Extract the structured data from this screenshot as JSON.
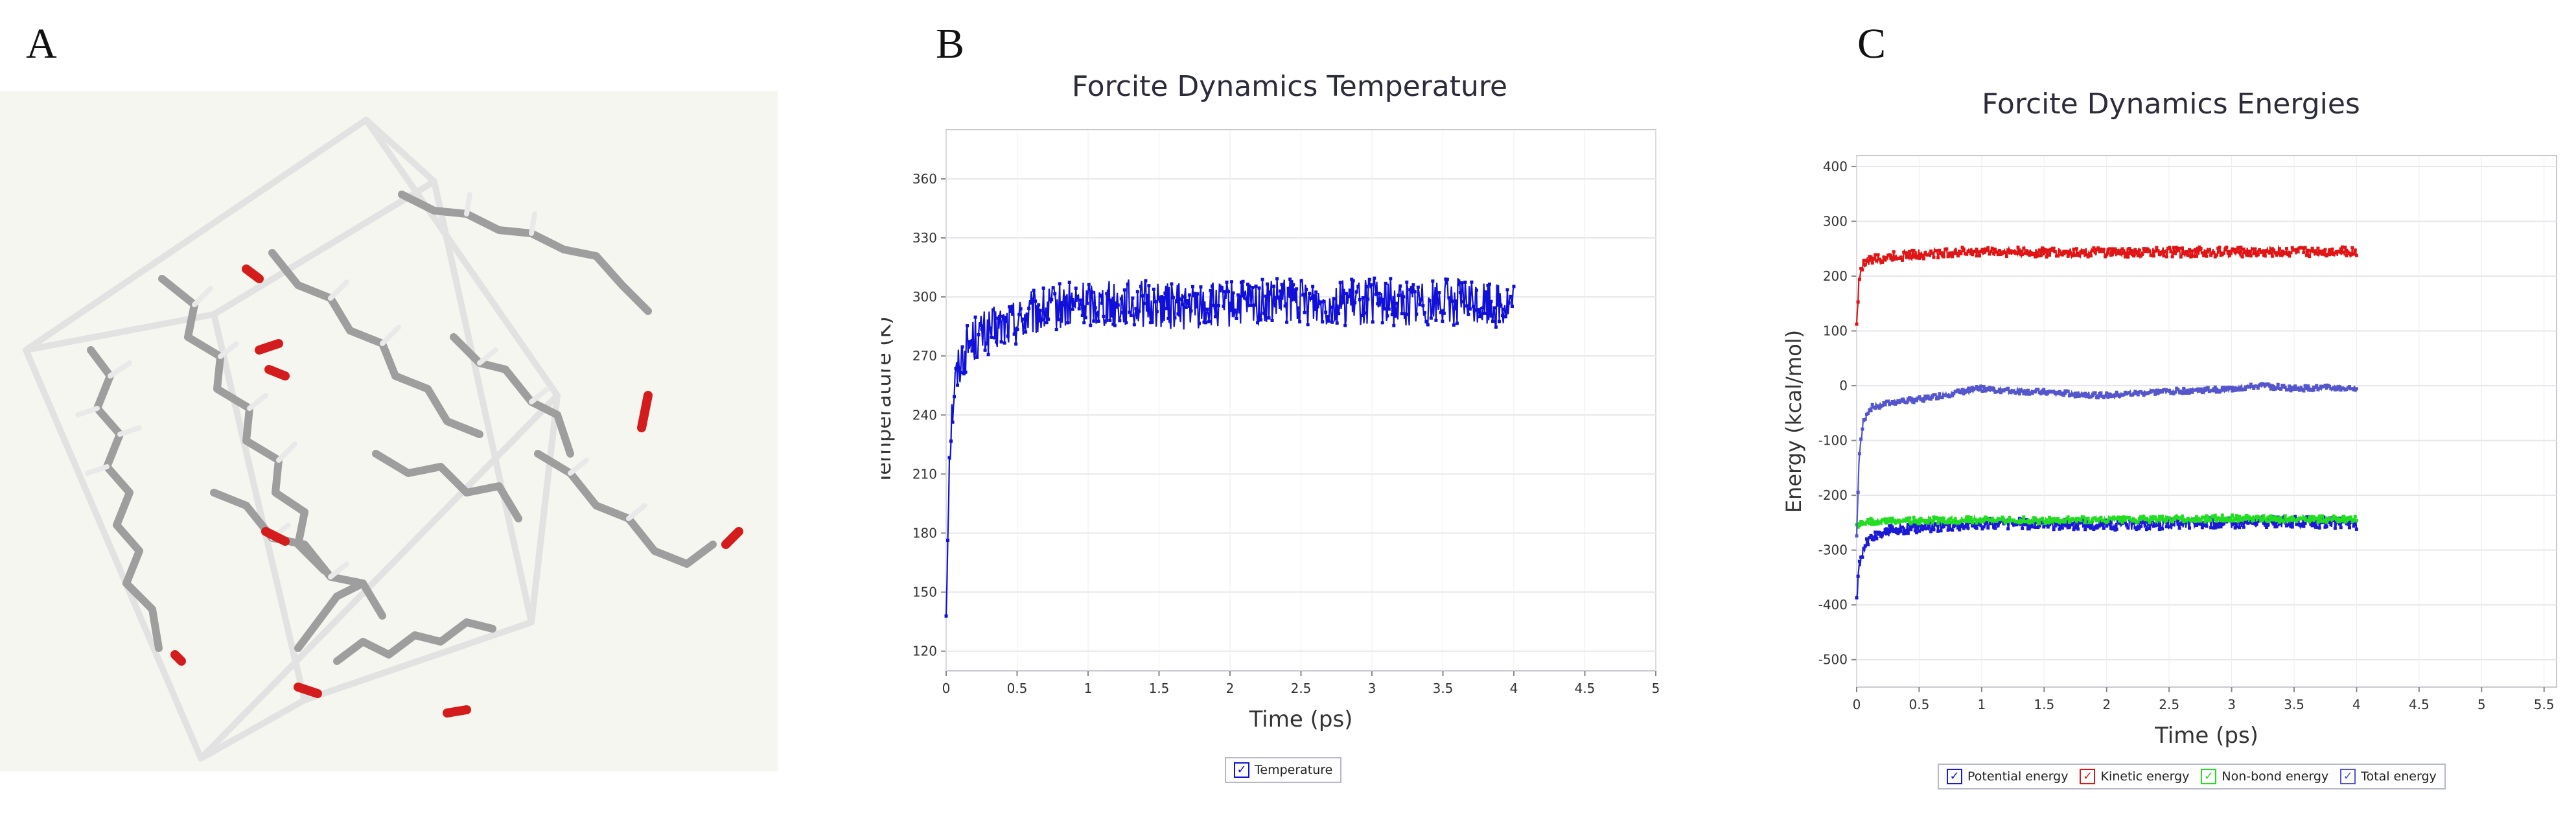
{
  "panels": {
    "a": {
      "letter": "A"
    },
    "b": {
      "letter": "B"
    },
    "c": {
      "letter": "C"
    }
  },
  "molecule": {
    "description_icon": "molecular-structure-image",
    "colors": {
      "bond": "#a9a9a9",
      "oxygen": "#d41c1c",
      "box": "#e8e8e8",
      "background": "#f6f6f0"
    }
  },
  "chart_data": [
    {
      "type": "line",
      "title": "Forcite Dynamics Temperature",
      "xlabel": "Time (ps)",
      "ylabel": "Temperature (K)",
      "xlim": [
        0,
        5
      ],
      "ylim": [
        110,
        385
      ],
      "xticks": [
        "0",
        "0.5",
        "1",
        "1.5",
        "2",
        "2.5",
        "3",
        "3.5",
        "4",
        "4.5",
        "5"
      ],
      "yticks": [
        "120",
        "150",
        "180",
        "210",
        "240",
        "270",
        "300",
        "330",
        "360"
      ],
      "grid": true,
      "legend_position": "bottom-center",
      "series": [
        {
          "name": "Temperature",
          "color": "#1010d8",
          "x": [
            0,
            0.02,
            0.04,
            0.06,
            0.08,
            0.1,
            0.15,
            0.2,
            0.3,
            0.4,
            0.5,
            0.6,
            0.7,
            0.8,
            0.9,
            1.0,
            1.25,
            1.5,
            1.75,
            2.0,
            2.25,
            2.5,
            2.75,
            3.0,
            3.25,
            3.5,
            3.75,
            4.0
          ],
          "y": [
            140,
            215,
            240,
            255,
            262,
            268,
            275,
            279,
            282,
            285,
            288,
            291,
            293,
            295,
            296,
            297,
            297,
            296,
            295,
            296,
            297,
            298,
            297,
            298,
            297,
            298,
            297,
            296
          ],
          "noise_amplitude": 12
        }
      ]
    },
    {
      "type": "line",
      "title": "Forcite Dynamics Energies",
      "xlabel": "Time (ps)",
      "ylabel": "Energy (kcal/mol)",
      "xlim": [
        0,
        5.6
      ],
      "ylim": [
        -550,
        420
      ],
      "xticks": [
        "0",
        "0.5",
        "1",
        "1.5",
        "2",
        "2.5",
        "3",
        "3.5",
        "4",
        "4.5",
        "5",
        "5.5"
      ],
      "yticks": [
        "400",
        "300",
        "200",
        "100",
        "0",
        "-100",
        "-200",
        "-300",
        "-400",
        "-500"
      ],
      "grid": true,
      "legend_position": "bottom-center",
      "series": [
        {
          "name": "Potential energy",
          "color": "#1a1ad6",
          "x": [
            0,
            0.02,
            0.05,
            0.1,
            0.2,
            0.3,
            0.5,
            0.75,
            1.0,
            1.5,
            2.0,
            2.5,
            3.0,
            3.5,
            4.0
          ],
          "y": [
            -390,
            -330,
            -300,
            -280,
            -270,
            -262,
            -258,
            -255,
            -252,
            -252,
            -254,
            -252,
            -250,
            -248,
            -252
          ],
          "noise_amplitude": 10
        },
        {
          "name": "Kinetic energy",
          "color": "#e01515",
          "x": [
            0,
            0.02,
            0.05,
            0.1,
            0.2,
            0.3,
            0.5,
            0.75,
            1.0,
            1.5,
            2.0,
            2.5,
            3.0,
            3.5,
            4.0
          ],
          "y": [
            110,
            200,
            220,
            228,
            232,
            236,
            240,
            243,
            245,
            244,
            243,
            244,
            244,
            245,
            244
          ],
          "noise_amplitude": 9
        },
        {
          "name": "Non-bond energy",
          "color": "#22dd22",
          "x": [
            0,
            0.05,
            0.1,
            0.3,
            0.5,
            1.0,
            1.5,
            2.0,
            2.5,
            3.0,
            3.5,
            4.0
          ],
          "y": [
            -255,
            -250,
            -248,
            -247,
            -246,
            -245,
            -246,
            -245,
            -244,
            -242,
            -243,
            -244
          ],
          "noise_amplitude": 6
        },
        {
          "name": "Total energy",
          "color": "#5555cc",
          "x": [
            0,
            0.02,
            0.05,
            0.08,
            0.12,
            0.2,
            0.3,
            0.5,
            0.75,
            1.0,
            1.25,
            1.5,
            1.75,
            2.0,
            2.25,
            2.5,
            2.75,
            3.0,
            3.25,
            3.5,
            3.75,
            4.0
          ],
          "y": [
            -275,
            -130,
            -70,
            -50,
            -40,
            -35,
            -30,
            -25,
            -15,
            -5,
            -10,
            -12,
            -15,
            -18,
            -14,
            -10,
            -8,
            -6,
            0,
            -5,
            -4,
            -5
          ],
          "noise_amplitude": 5
        }
      ]
    }
  ]
}
